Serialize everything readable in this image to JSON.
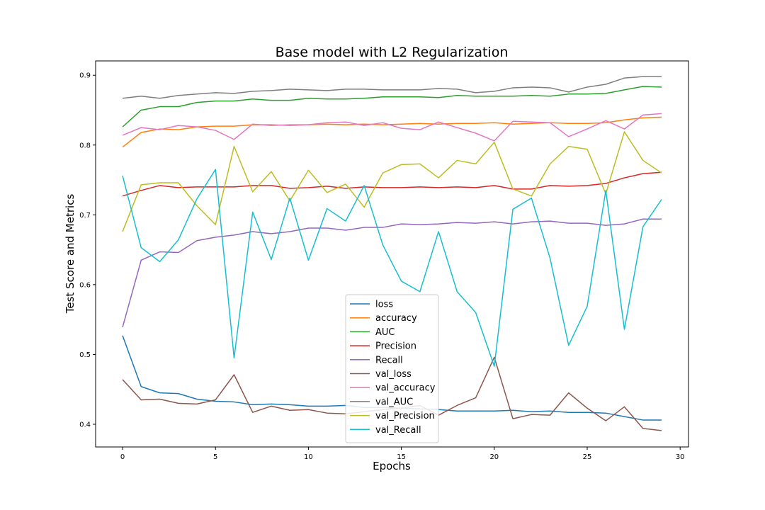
{
  "chart_data": {
    "type": "line",
    "title": "Base model with L2 Regularization",
    "xlabel": "Epochs",
    "ylabel": "Test Score and Metrics",
    "xlim": [
      -1.45,
      30.45
    ],
    "ylim": [
      0.3675,
      0.9205
    ],
    "xticks": [
      0,
      5,
      10,
      15,
      20,
      25,
      30
    ],
    "yticks": [
      0.4,
      0.5,
      0.6,
      0.7,
      0.8,
      0.9
    ],
    "ytick_labels": [
      "0.4",
      "0.5",
      "0.6",
      "0.7",
      "0.8",
      "0.9"
    ],
    "grid": false,
    "legend_position": "lower center",
    "x": [
      0,
      1,
      2,
      3,
      4,
      5,
      6,
      7,
      8,
      9,
      10,
      11,
      12,
      13,
      14,
      15,
      16,
      17,
      18,
      19,
      20,
      21,
      22,
      23,
      24,
      25,
      26,
      27,
      28,
      29
    ],
    "series": [
      {
        "name": "loss",
        "color": "#1f77b4",
        "values": [
          0.527,
          0.454,
          0.445,
          0.444,
          0.436,
          0.433,
          0.432,
          0.428,
          0.429,
          0.428,
          0.426,
          0.426,
          0.427,
          0.424,
          0.424,
          0.423,
          0.422,
          0.421,
          0.419,
          0.419,
          0.419,
          0.42,
          0.418,
          0.419,
          0.417,
          0.417,
          0.416,
          0.411,
          0.406,
          0.406
        ]
      },
      {
        "name": "accuracy",
        "color": "#ff7f0e",
        "values": [
          0.797,
          0.818,
          0.823,
          0.822,
          0.826,
          0.827,
          0.827,
          0.829,
          0.829,
          0.828,
          0.829,
          0.83,
          0.829,
          0.83,
          0.829,
          0.83,
          0.831,
          0.83,
          0.831,
          0.831,
          0.832,
          0.83,
          0.831,
          0.832,
          0.831,
          0.831,
          0.832,
          0.836,
          0.839,
          0.84
        ]
      },
      {
        "name": "AUC",
        "color": "#2ca02c",
        "values": [
          0.826,
          0.85,
          0.855,
          0.855,
          0.861,
          0.863,
          0.863,
          0.866,
          0.864,
          0.864,
          0.867,
          0.866,
          0.866,
          0.867,
          0.869,
          0.869,
          0.869,
          0.868,
          0.871,
          0.87,
          0.87,
          0.87,
          0.871,
          0.87,
          0.873,
          0.873,
          0.874,
          0.879,
          0.884,
          0.883
        ]
      },
      {
        "name": "Precision",
        "color": "#d62728",
        "values": [
          0.727,
          0.735,
          0.742,
          0.739,
          0.74,
          0.74,
          0.74,
          0.742,
          0.742,
          0.738,
          0.739,
          0.741,
          0.738,
          0.74,
          0.739,
          0.739,
          0.74,
          0.739,
          0.74,
          0.739,
          0.742,
          0.737,
          0.737,
          0.742,
          0.741,
          0.742,
          0.745,
          0.753,
          0.759,
          0.761
        ]
      },
      {
        "name": "Recall",
        "color": "#9467bd",
        "values": [
          0.539,
          0.635,
          0.647,
          0.646,
          0.663,
          0.668,
          0.671,
          0.676,
          0.673,
          0.676,
          0.681,
          0.681,
          0.678,
          0.682,
          0.682,
          0.687,
          0.686,
          0.687,
          0.689,
          0.688,
          0.69,
          0.687,
          0.69,
          0.691,
          0.688,
          0.688,
          0.685,
          0.687,
          0.694,
          0.694
        ]
      },
      {
        "name": "val_loss",
        "color": "#8c564b",
        "values": [
          0.464,
          0.435,
          0.436,
          0.43,
          0.429,
          0.435,
          0.471,
          0.417,
          0.426,
          0.42,
          0.421,
          0.416,
          0.415,
          0.418,
          0.421,
          0.423,
          0.427,
          0.413,
          0.427,
          0.438,
          0.496,
          0.408,
          0.414,
          0.413,
          0.445,
          0.423,
          0.405,
          0.425,
          0.394,
          0.391
        ]
      },
      {
        "name": "val_accuracy",
        "color": "#e377c2",
        "values": [
          0.814,
          0.825,
          0.822,
          0.828,
          0.826,
          0.821,
          0.808,
          0.83,
          0.828,
          0.829,
          0.829,
          0.832,
          0.833,
          0.828,
          0.832,
          0.824,
          0.822,
          0.833,
          0.825,
          0.817,
          0.806,
          0.834,
          0.833,
          0.832,
          0.812,
          0.823,
          0.835,
          0.823,
          0.843,
          0.845
        ]
      },
      {
        "name": "val_AUC",
        "color": "#7f7f7f",
        "values": [
          0.867,
          0.87,
          0.867,
          0.871,
          0.873,
          0.875,
          0.874,
          0.877,
          0.878,
          0.88,
          0.879,
          0.878,
          0.88,
          0.88,
          0.879,
          0.879,
          0.879,
          0.881,
          0.88,
          0.875,
          0.877,
          0.882,
          0.883,
          0.882,
          0.876,
          0.883,
          0.887,
          0.896,
          0.898,
          0.898
        ]
      },
      {
        "name": "val_Precision",
        "color": "#bcbd22",
        "values": [
          0.676,
          0.743,
          0.746,
          0.746,
          0.713,
          0.686,
          0.798,
          0.733,
          0.762,
          0.72,
          0.764,
          0.732,
          0.744,
          0.711,
          0.76,
          0.772,
          0.773,
          0.753,
          0.778,
          0.773,
          0.804,
          0.737,
          0.727,
          0.773,
          0.798,
          0.794,
          0.73,
          0.819,
          0.778,
          0.76
        ]
      },
      {
        "name": "val_Recall",
        "color": "#17becf",
        "values": [
          0.756,
          0.653,
          0.633,
          0.664,
          0.723,
          0.765,
          0.495,
          0.704,
          0.636,
          0.724,
          0.635,
          0.709,
          0.691,
          0.742,
          0.657,
          0.605,
          0.59,
          0.676,
          0.59,
          0.56,
          0.483,
          0.708,
          0.724,
          0.638,
          0.513,
          0.569,
          0.735,
          0.536,
          0.683,
          0.722
        ]
      }
    ]
  }
}
